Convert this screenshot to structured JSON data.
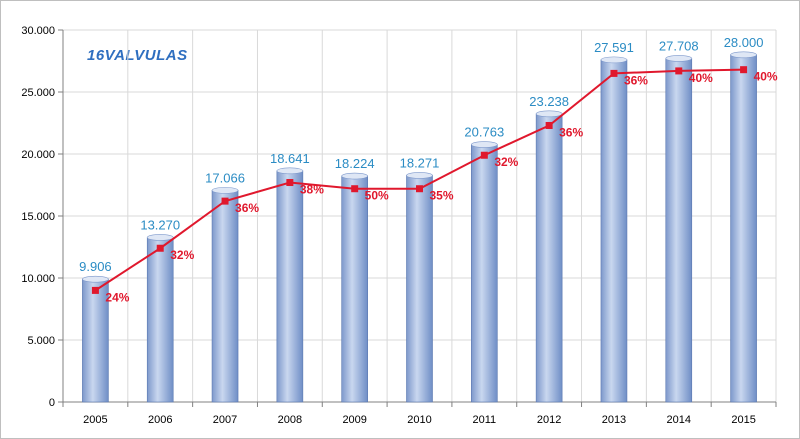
{
  "logo": {
    "text": "16VALVULAS",
    "icon": "wrench-logo-icon"
  },
  "colors": {
    "bar_light": "#c8d6ee",
    "bar_dark": "#6f8ec6",
    "value_label": "#2b8cc4",
    "line": "#e0182d",
    "grid": "#d9d9d9"
  },
  "chart_data": {
    "type": "bar",
    "title": "",
    "xlabel": "",
    "ylabel": "",
    "categories": [
      "2005",
      "2006",
      "2007",
      "2008",
      "2009",
      "2010",
      "2011",
      "2012",
      "2013",
      "2014",
      "2015"
    ],
    "ylim": [
      0,
      30000
    ],
    "y_ticks": [
      0,
      5000,
      10000,
      15000,
      20000,
      25000,
      30000
    ],
    "y_tick_labels": [
      "0",
      "5.000",
      "10.000",
      "15.000",
      "20.000",
      "25.000",
      "30.000"
    ],
    "grid": true,
    "legend": "none",
    "series": [
      {
        "type": "bar",
        "values": [
          9906,
          13270,
          17066,
          18641,
          18224,
          18271,
          20763,
          23238,
          27591,
          27708,
          28000
        ],
        "labels": [
          "9.906",
          "13.270",
          "17.066",
          "18.641",
          "18.224",
          "18.271",
          "20.763",
          "23.238",
          "27.591",
          "27.708",
          "28.000"
        ]
      },
      {
        "type": "line",
        "values": [
          9000,
          12400,
          16200,
          17700,
          17200,
          17200,
          19900,
          22300,
          26500,
          26700,
          26800
        ],
        "labels": [
          "24%",
          "32%",
          "36%",
          "38%",
          "50%",
          "35%",
          "32%",
          "36%",
          "36%",
          "40%",
          "40%"
        ]
      }
    ]
  }
}
